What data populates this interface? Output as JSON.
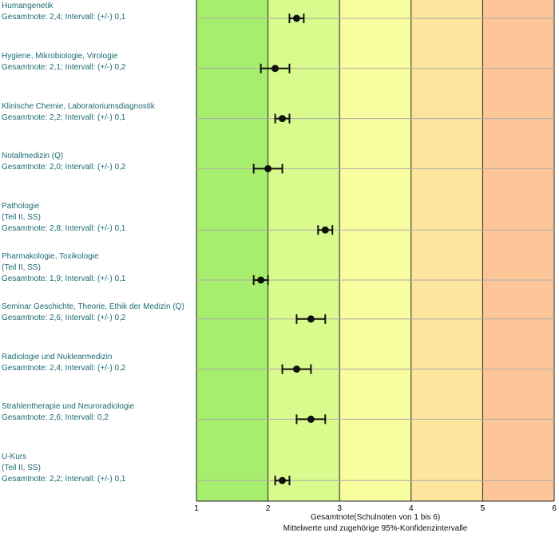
{
  "chart_data": {
    "type": "scatter",
    "orientation": "horizontal-errorbars",
    "xlabel": "Gesamtnote(Schulnoten von 1 bis 6)",
    "subtitle": "Mittelwerte und zugehörige 95%-Konfidenzintervalle",
    "xlim": [
      1,
      6
    ],
    "xticks": [
      "1",
      "2",
      "3",
      "4",
      "5",
      "6"
    ],
    "grid": true,
    "bands": [
      {
        "from": 1,
        "to": 2,
        "color": "#a8ee6e"
      },
      {
        "from": 2,
        "to": 3,
        "color": "#d9fa8c"
      },
      {
        "from": 3,
        "to": 4,
        "color": "#f8fd9f"
      },
      {
        "from": 4,
        "to": 5,
        "color": "#fde59e"
      },
      {
        "from": 5,
        "to": 6,
        "color": "#fcc698"
      }
    ],
    "items": [
      {
        "lines": [
          "Humangenetik",
          "Gesamtnote: 2,4;  Intervall: (+/-) 0,1"
        ],
        "mean": 2.4,
        "ci": 0.1
      },
      {
        "lines": [
          "Hygiene, Mikrobiologie, Virologie",
          "Gesamtnote: 2,1;  Intervall: (+/-) 0,2"
        ],
        "mean": 2.1,
        "ci": 0.2
      },
      {
        "lines": [
          "Klinische Chemie, Laboratoriumsdiagnostik",
          "Gesamtnote: 2,2;  Intervall: (+/-) 0,1"
        ],
        "mean": 2.2,
        "ci": 0.1
      },
      {
        "lines": [
          "Notallmedizin (Q)",
          "Gesamtnote: 2,0;  Intervall: (+/-) 0,2"
        ],
        "mean": 2.0,
        "ci": 0.2
      },
      {
        "lines": [
          "Pathologie",
          "(Teil II, SS)",
          "Gesamtnote: 2,8;  Intervall: (+/-) 0,1"
        ],
        "mean": 2.8,
        "ci": 0.1
      },
      {
        "lines": [
          "Pharmakologie, Toxikologie",
          "(Teil II, SS)",
          "Gesamtnote: 1,9;  Intervall: (+/-) 0,1"
        ],
        "mean": 1.9,
        "ci": 0.1
      },
      {
        "lines": [
          "Seminar Geschichte, Theorie, Ethik der Medizin (Q)",
          "Gesamtnote: 2,6;  Intervall: (+/-) 0,2"
        ],
        "mean": 2.6,
        "ci": 0.2
      },
      {
        "lines": [
          "Radiologie und Nuklearmedizin",
          "Gesamtnote: 2,4;  Intervall: (+/-) 0,2"
        ],
        "mean": 2.4,
        "ci": 0.2
      },
      {
        "lines": [
          "Strahlentherapie und Neuroradiologie",
          "Gesamtnote: 2,6;  Intervall: 0,2"
        ],
        "mean": 2.6,
        "ci": 0.2
      },
      {
        "lines": [
          "U-Kurs",
          "(Teil II, SS)",
          "Gesamtnote: 2,2;  Intervall: (+/-) 0,1"
        ],
        "mean": 2.2,
        "ci": 0.1
      }
    ]
  }
}
